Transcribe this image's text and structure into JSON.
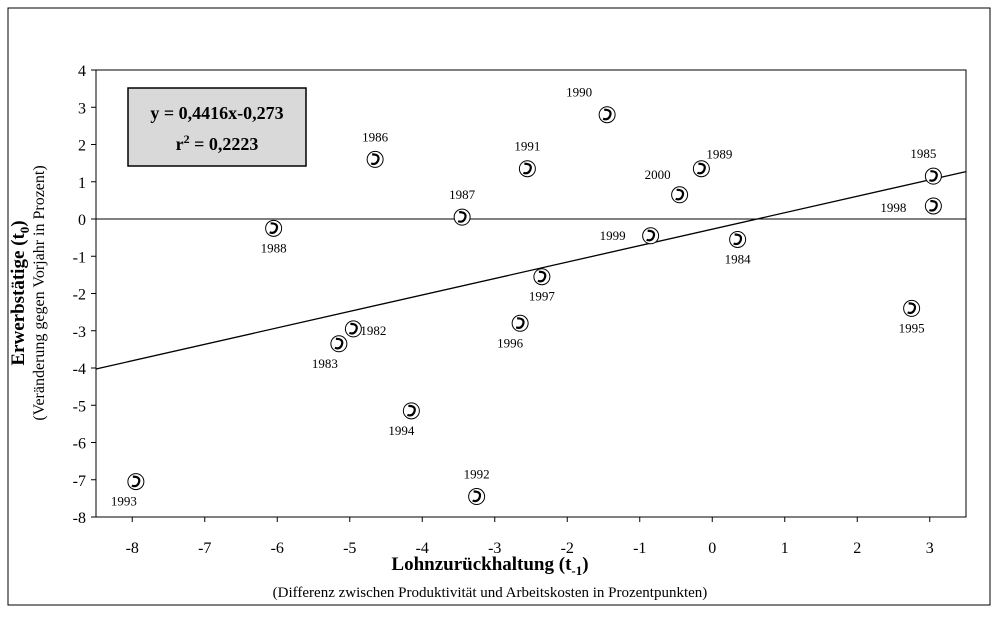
{
  "chart_data": {
    "type": "scatter",
    "xlabel": {
      "text": "Lohnzurückhaltung (t",
      "sub": "-1",
      "end": ")"
    },
    "xlabel_note": "(Differenz zwischen Produktivität und Arbeitskosten in Prozentpunkten)",
    "ylabel": {
      "text": "Erwerbstätige (t",
      "sub": "0",
      "end": ")"
    },
    "ylabel_note": "(Veränderung gegen Vorjahr in Prozent)",
    "equation": "y = 0,4416x-0,273",
    "r2": {
      "base": "r",
      "sup": "2",
      "text": " = 0,2223"
    },
    "trendline": {
      "slope": 0.4416,
      "intercept": -0.273
    },
    "xlim": [
      -8.5,
      3.5
    ],
    "ylim": [
      -8,
      4
    ],
    "xticks": [
      -8,
      -7,
      -6,
      -5,
      -4,
      -3,
      -2,
      -1,
      0,
      1,
      2,
      3
    ],
    "yticks": [
      -8,
      -7,
      -6,
      -5,
      -4,
      -3,
      -2,
      -1,
      0,
      1,
      2,
      3,
      4
    ],
    "series": [
      {
        "labels": [
          "1990",
          "1986",
          "1991",
          "1989",
          "2000",
          "1985",
          "1998",
          "1987",
          "1988",
          "1999",
          "1984",
          "1997",
          "1996",
          "1982",
          "1983",
          "1995",
          "1994",
          "1993",
          "1992"
        ],
        "x": [
          -1.45,
          -4.65,
          -2.55,
          -0.15,
          -0.45,
          3.05,
          3.05,
          -3.45,
          -6.05,
          -0.85,
          0.35,
          -2.35,
          -2.65,
          -4.95,
          -5.15,
          2.75,
          -4.15,
          -7.95,
          -3.25
        ],
        "values": [
          2.8,
          1.6,
          1.35,
          1.35,
          0.65,
          1.15,
          0.35,
          0.05,
          -0.25,
          -0.45,
          -0.55,
          -1.55,
          -2.8,
          -2.95,
          -3.35,
          -2.4,
          -5.15,
          -7.05,
          -7.45
        ]
      }
    ]
  }
}
